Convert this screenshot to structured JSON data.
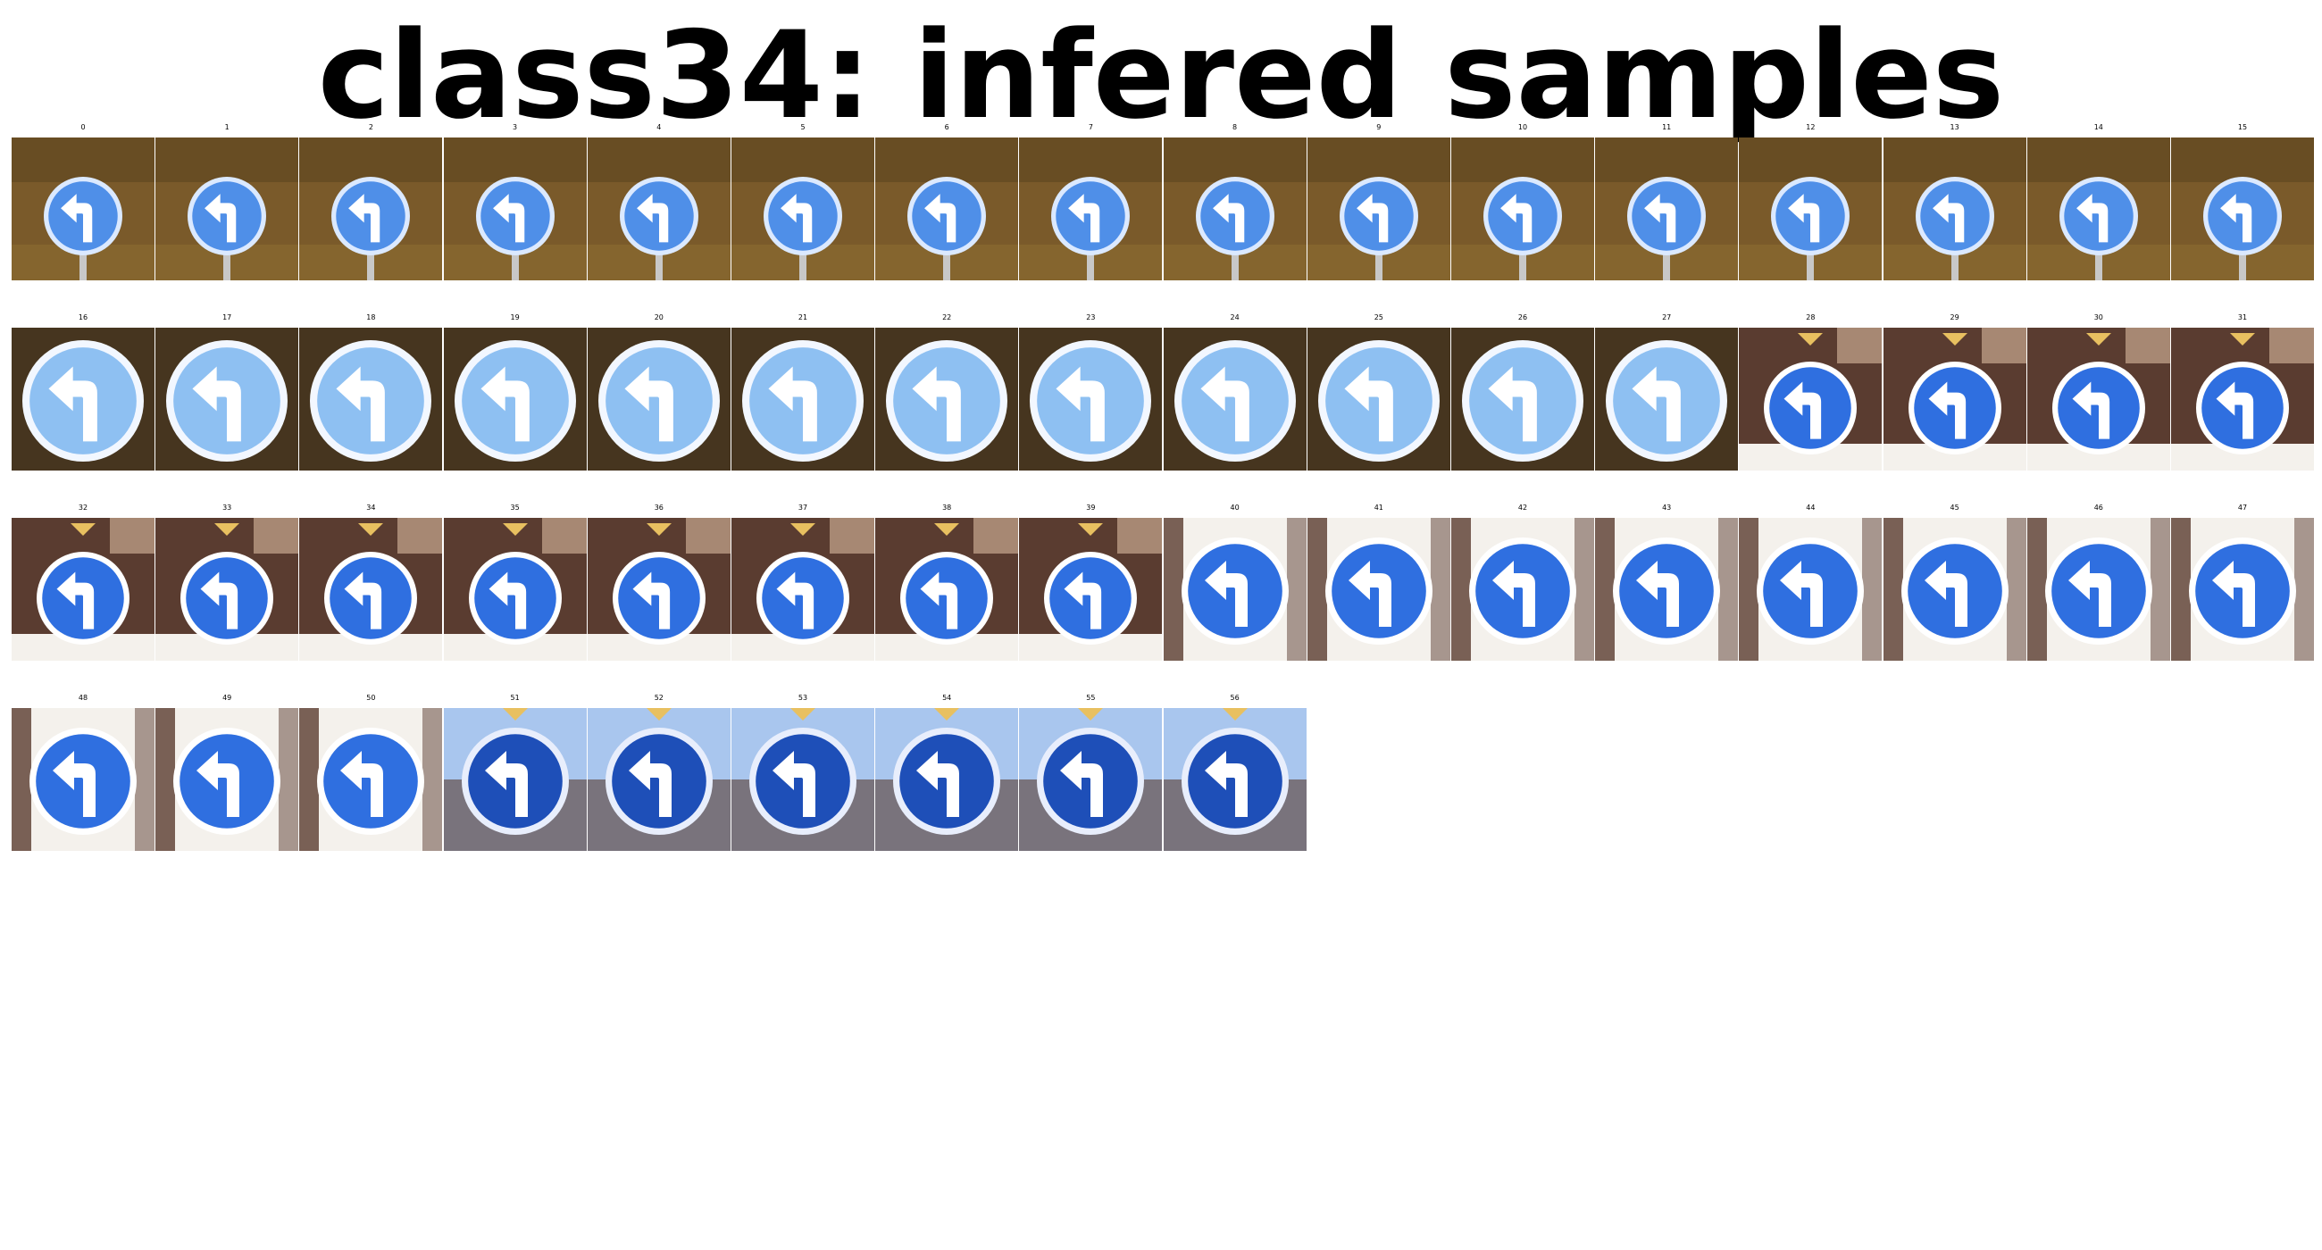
{
  "title": "class34: infered samples",
  "colors": {
    "sign_blue": "#2f6fe0",
    "sign_light_blue": "#8ec0f2",
    "sign_dark_blue": "#1e4fb8",
    "arrow": "#ffffff",
    "bg_foliage": "#7a5a2a",
    "bg_dark": "#3a2a1a",
    "bg_building": "#5a3c30",
    "bg_bright": "#f4f1ec",
    "bg_sky": "#a9c6ee"
  },
  "samples": [
    {
      "label": "0",
      "style": "A"
    },
    {
      "label": "1",
      "style": "A"
    },
    {
      "label": "2",
      "style": "A"
    },
    {
      "label": "3",
      "style": "A"
    },
    {
      "label": "4",
      "style": "A"
    },
    {
      "label": "5",
      "style": "A"
    },
    {
      "label": "6",
      "style": "A"
    },
    {
      "label": "7",
      "style": "A"
    },
    {
      "label": "8",
      "style": "A"
    },
    {
      "label": "9",
      "style": "A"
    },
    {
      "label": "10",
      "style": "A"
    },
    {
      "label": "11",
      "style": "A"
    },
    {
      "label": "12",
      "style": "A"
    },
    {
      "label": "13",
      "style": "A"
    },
    {
      "label": "14",
      "style": "A"
    },
    {
      "label": "15",
      "style": "A"
    },
    {
      "label": "16",
      "style": "B"
    },
    {
      "label": "17",
      "style": "B"
    },
    {
      "label": "18",
      "style": "B"
    },
    {
      "label": "19",
      "style": "B"
    },
    {
      "label": "20",
      "style": "B"
    },
    {
      "label": "21",
      "style": "B"
    },
    {
      "label": "22",
      "style": "B"
    },
    {
      "label": "23",
      "style": "B"
    },
    {
      "label": "24",
      "style": "B"
    },
    {
      "label": "25",
      "style": "B"
    },
    {
      "label": "26",
      "style": "B"
    },
    {
      "label": "27",
      "style": "B"
    },
    {
      "label": "28",
      "style": "C"
    },
    {
      "label": "29",
      "style": "C"
    },
    {
      "label": "30",
      "style": "C"
    },
    {
      "label": "31",
      "style": "C"
    },
    {
      "label": "32",
      "style": "C"
    },
    {
      "label": "33",
      "style": "C"
    },
    {
      "label": "34",
      "style": "C"
    },
    {
      "label": "35",
      "style": "C"
    },
    {
      "label": "36",
      "style": "C"
    },
    {
      "label": "37",
      "style": "C"
    },
    {
      "label": "38",
      "style": "C"
    },
    {
      "label": "39",
      "style": "C"
    },
    {
      "label": "40",
      "style": "D"
    },
    {
      "label": "41",
      "style": "D"
    },
    {
      "label": "42",
      "style": "D"
    },
    {
      "label": "43",
      "style": "D"
    },
    {
      "label": "44",
      "style": "D"
    },
    {
      "label": "45",
      "style": "D"
    },
    {
      "label": "46",
      "style": "D"
    },
    {
      "label": "47",
      "style": "D"
    },
    {
      "label": "48",
      "style": "D"
    },
    {
      "label": "49",
      "style": "D"
    },
    {
      "label": "50",
      "style": "D"
    },
    {
      "label": "51",
      "style": "E"
    },
    {
      "label": "52",
      "style": "E"
    },
    {
      "label": "53",
      "style": "E"
    },
    {
      "label": "54",
      "style": "E"
    },
    {
      "label": "55",
      "style": "E"
    },
    {
      "label": "56",
      "style": "E"
    }
  ]
}
